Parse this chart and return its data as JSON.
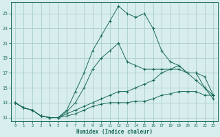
{
  "xlabel": "Humidex (Indice chaleur)",
  "bg_color": "#d8eded",
  "grid_color": "#aacfcf",
  "line_color": "#1a6b5a",
  "xlim": [
    -0.5,
    23.5
  ],
  "ylim": [
    10.5,
    26.5
  ],
  "yticks": [
    11,
    13,
    15,
    17,
    19,
    21,
    23,
    25
  ],
  "xticks": [
    0,
    1,
    2,
    3,
    4,
    5,
    6,
    7,
    8,
    9,
    10,
    11,
    12,
    13,
    14,
    15,
    16,
    17,
    18,
    19,
    20,
    21,
    22,
    23
  ],
  "line1": [
    13,
    12.3,
    12,
    11.2,
    11,
    11,
    11.2,
    11.5,
    12,
    12.5,
    12.8,
    13,
    13,
    13,
    13.2,
    13.2,
    13.5,
    14,
    14.2,
    14.5,
    14.5,
    14.5,
    14,
    14
  ],
  "line2": [
    13,
    12.3,
    12,
    11.2,
    11,
    11,
    11.5,
    12,
    12.5,
    13,
    13.5,
    14,
    14.5,
    14.5,
    15,
    15.5,
    16,
    17,
    17.5,
    17.5,
    17,
    17,
    16.5,
    14
  ],
  "line3": [
    13,
    12.3,
    12,
    11.2,
    11,
    11,
    11.8,
    13,
    15,
    17.5,
    19,
    20,
    21,
    18.5,
    18,
    17.5,
    17.5,
    17.5,
    17.5,
    18,
    17,
    17,
    15,
    14
  ],
  "line4": [
    13,
    12.3,
    12,
    11.2,
    11,
    11,
    12,
    14.5,
    17,
    20,
    22,
    24,
    26,
    25,
    24.5,
    25,
    23,
    20,
    18.5,
    18,
    17,
    16,
    15,
    13.5
  ]
}
